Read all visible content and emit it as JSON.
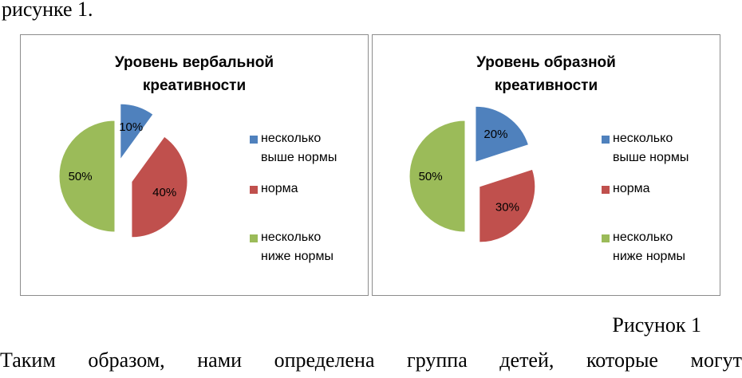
{
  "page": {
    "top_text": "рисунке 1.",
    "caption": "Рисунок 1",
    "bottom_text": "Таким образом, нами определена группа детей, которые могут"
  },
  "colors": {
    "blue": "#4f81bd",
    "red": "#c0504d",
    "green": "#9bbb59"
  },
  "chart_data": [
    {
      "type": "pie",
      "title_lines": [
        "Уровень вербальной",
        "креативности"
      ],
      "slices": [
        {
          "label": "10%",
          "value": 10,
          "color": "#4f81bd",
          "legend_lines": [
            "несколько",
            "выше нормы"
          ]
        },
        {
          "label": "40%",
          "value": 40,
          "color": "#c0504d",
          "legend_lines": [
            "норма"
          ]
        },
        {
          "label": "50%",
          "value": 50,
          "color": "#9bbb59",
          "legend_lines": [
            "несколько",
            "ниже нормы"
          ]
        }
      ],
      "legend_position": "right"
    },
    {
      "type": "pie",
      "title_lines": [
        "Уровень образной",
        "креативности"
      ],
      "slices": [
        {
          "label": "20%",
          "value": 20,
          "color": "#4f81bd",
          "legend_lines": [
            "несколько",
            "выше нормы"
          ]
        },
        {
          "label": "30%",
          "value": 30,
          "color": "#c0504d",
          "legend_lines": [
            "норма"
          ]
        },
        {
          "label": "50%",
          "value": 50,
          "color": "#9bbb59",
          "legend_lines": [
            "несколько",
            "ниже нормы"
          ]
        }
      ],
      "legend_position": "right"
    }
  ]
}
